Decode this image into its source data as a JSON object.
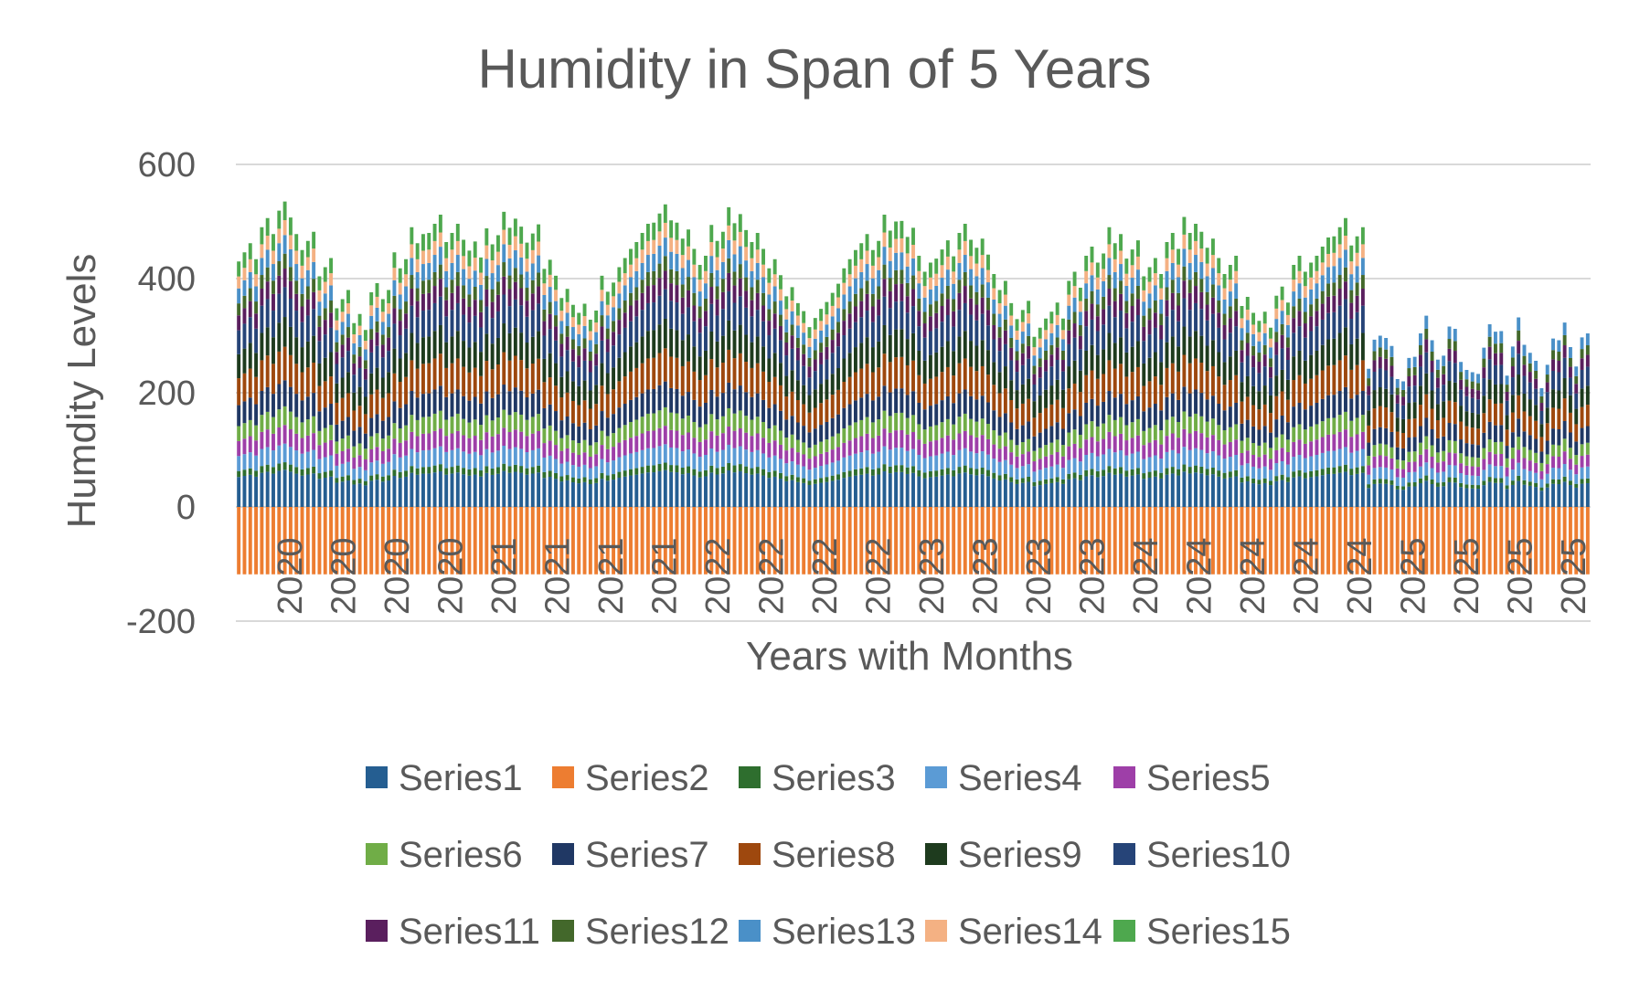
{
  "chart_data": {
    "type": "bar",
    "stacked": true,
    "title": "Humidity in Span of 5 Years",
    "xlabel": "Years with Months",
    "ylabel": "Humdity Levels",
    "ylim": [
      -200,
      600
    ],
    "yticks": [
      -200,
      0,
      200,
      400,
      600
    ],
    "grid": true,
    "legend_position": "bottom",
    "x_tick_labels": [
      "2020",
      "2020",
      "2020",
      "2020",
      "2021",
      "2021",
      "2021",
      "2021",
      "2022",
      "2022",
      "2022",
      "2022",
      "2023",
      "2023",
      "2023",
      "2023",
      "2024",
      "2024",
      "2024",
      "2024",
      "2024",
      "2025",
      "2025",
      "2025",
      "2025"
    ],
    "series": [
      {
        "name": "Series1",
        "color": "#255E91",
        "typical_value": 50
      },
      {
        "name": "Series2",
        "color": "#ED7D31",
        "typical_value": -118
      },
      {
        "name": "Series3",
        "color": "#2E6E2E",
        "typical_value": 10
      },
      {
        "name": "Series4",
        "color": "#5B9BD5",
        "typical_value": 25
      },
      {
        "name": "Series5",
        "color": "#9E3FA8",
        "typical_value": 25
      },
      {
        "name": "Series6",
        "color": "#70AD47",
        "typical_value": 25
      },
      {
        "name": "Series7",
        "color": "#203864",
        "typical_value": 35
      },
      {
        "name": "Series8",
        "color": "#9E480E",
        "typical_value": 45
      },
      {
        "name": "Series9",
        "color": "#1E3B1E",
        "typical_value": 40
      },
      {
        "name": "Series10",
        "color": "#264478",
        "typical_value": 40
      },
      {
        "name": "Series11",
        "color": "#5A1F5E",
        "typical_value": 25
      },
      {
        "name": "Series12",
        "color": "#43682B",
        "typical_value": 20
      },
      {
        "name": "Series13",
        "color": "#4A90C8",
        "typical_value": 25
      },
      {
        "name": "Series14",
        "color": "#F4B183",
        "typical_value": 20
      },
      {
        "name": "Series15",
        "color": "#4EA84E",
        "typical_value": 25
      }
    ],
    "totals_pattern": {
      "period_months": 12,
      "annual_totals": [
        [
          450,
          490,
          515,
          470,
          420,
          360,
          330,
          380,
          430,
          470,
          500,
          480
        ],
        [
          445,
          480,
          505,
          475,
          425,
          370,
          340,
          385,
          440,
          480,
          510,
          490
        ],
        [
          440,
          478,
          505,
          468,
          418,
          365,
          335,
          375,
          430,
          470,
          500,
          485
        ],
        [
          420,
          455,
          480,
          450,
          400,
          345,
          310,
          350,
          400,
          440,
          470,
          455
        ],
        [
          420,
          460,
          500,
          470,
          420,
          360,
          330,
          370,
          420,
          460,
          490,
          470
        ],
        [
          250,
          285,
          320,
          300,
          270,
          240,
          220,
          245,
          275,
          300,
          315,
          300
        ]
      ],
      "bars_full_stack": 196,
      "bars_reduced_stack": 39
    }
  }
}
